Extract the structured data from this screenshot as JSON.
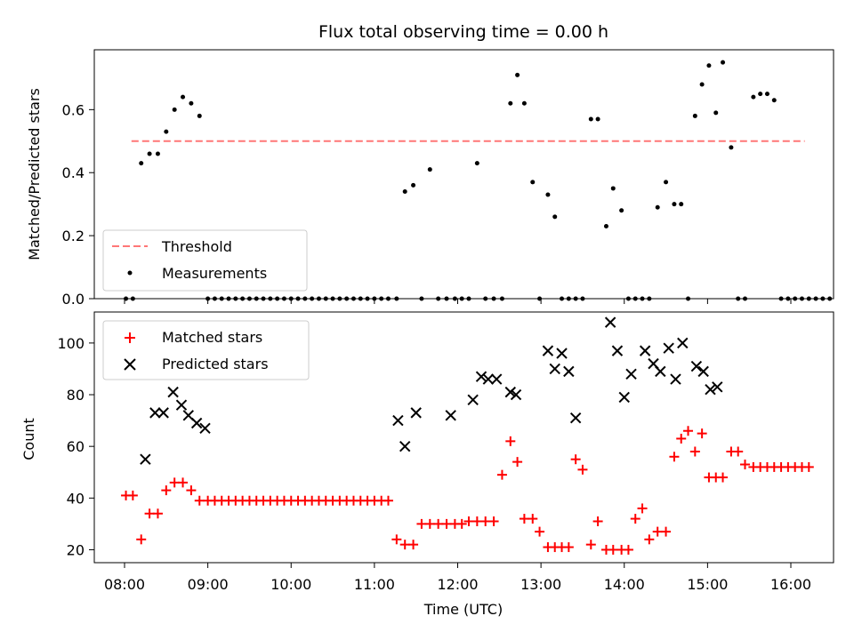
{
  "chart_data": [
    {
      "type": "scatter",
      "title": "Flux total observing time = 0.00 h",
      "xlabel": "",
      "ylabel": "Matched/Predicted stars",
      "ylim": [
        0,
        0.79
      ],
      "yticks": [
        0.0,
        0.2,
        0.4,
        0.6
      ],
      "ytick_labels": [
        "0.0",
        "0.2",
        "0.4",
        "0.6"
      ],
      "legend": {
        "placement": "lower-left",
        "entries": [
          "Threshold",
          "Measurements"
        ]
      },
      "threshold": {
        "name": "Threshold",
        "y": 0.5,
        "x_start": "08:05",
        "x_end": "16:10",
        "color": "#ff6666"
      },
      "series": [
        {
          "name": "Measurements",
          "marker": "dot",
          "color": "#000000",
          "points": [
            [
              "08:01",
              0
            ],
            [
              "08:06",
              0
            ],
            [
              "08:12",
              0.43
            ],
            [
              "08:18",
              0.46
            ],
            [
              "08:24",
              0.46
            ],
            [
              "08:30",
              0.53
            ],
            [
              "08:36",
              0.6
            ],
            [
              "08:42",
              0.64
            ],
            [
              "08:48",
              0.62
            ],
            [
              "08:54",
              0.58
            ],
            [
              "09:00",
              0
            ],
            [
              "09:05",
              0
            ],
            [
              "09:10",
              0
            ],
            [
              "09:15",
              0
            ],
            [
              "09:20",
              0
            ],
            [
              "09:25",
              0
            ],
            [
              "09:30",
              0
            ],
            [
              "09:35",
              0
            ],
            [
              "09:40",
              0
            ],
            [
              "09:45",
              0
            ],
            [
              "09:50",
              0
            ],
            [
              "09:55",
              0
            ],
            [
              "10:00",
              0
            ],
            [
              "10:05",
              0
            ],
            [
              "10:10",
              0
            ],
            [
              "10:15",
              0
            ],
            [
              "10:20",
              0
            ],
            [
              "10:25",
              0
            ],
            [
              "10:30",
              0
            ],
            [
              "10:35",
              0
            ],
            [
              "10:40",
              0
            ],
            [
              "10:45",
              0
            ],
            [
              "10:50",
              0
            ],
            [
              "10:55",
              0
            ],
            [
              "11:00",
              0
            ],
            [
              "11:05",
              0
            ],
            [
              "11:10",
              0
            ],
            [
              "11:16",
              0
            ],
            [
              "11:22",
              0.34
            ],
            [
              "11:28",
              0.36
            ],
            [
              "11:34",
              0
            ],
            [
              "11:40",
              0.41
            ],
            [
              "11:46",
              0
            ],
            [
              "11:52",
              0
            ],
            [
              "11:58",
              0
            ],
            [
              "12:03",
              0
            ],
            [
              "12:08",
              0
            ],
            [
              "12:14",
              0.43
            ],
            [
              "12:20",
              0
            ],
            [
              "12:26",
              0
            ],
            [
              "12:32",
              0
            ],
            [
              "12:38",
              0.62
            ],
            [
              "12:43",
              0.71
            ],
            [
              "12:48",
              0.62
            ],
            [
              "12:54",
              0.37
            ],
            [
              "12:59",
              0
            ],
            [
              "13:05",
              0.33
            ],
            [
              "13:10",
              0.26
            ],
            [
              "13:15",
              0
            ],
            [
              "13:20",
              0
            ],
            [
              "13:25",
              0
            ],
            [
              "13:30",
              0
            ],
            [
              "13:36",
              0.57
            ],
            [
              "13:41",
              0.57
            ],
            [
              "13:47",
              0.23
            ],
            [
              "13:52",
              0.35
            ],
            [
              "13:58",
              0.28
            ],
            [
              "14:03",
              0
            ],
            [
              "14:08",
              0
            ],
            [
              "14:13",
              0
            ],
            [
              "14:18",
              0
            ],
            [
              "14:24",
              0.29
            ],
            [
              "14:30",
              0.37
            ],
            [
              "14:36",
              0.3
            ],
            [
              "14:41",
              0.3
            ],
            [
              "14:46",
              0
            ],
            [
              "14:51",
              0.58
            ],
            [
              "14:56",
              0.68
            ],
            [
              "15:01",
              0.74
            ],
            [
              "15:06",
              0.59
            ],
            [
              "15:11",
              0.75
            ],
            [
              "15:17",
              0.48
            ],
            [
              "15:22",
              0
            ],
            [
              "15:27",
              0
            ],
            [
              "15:33",
              0.64
            ],
            [
              "15:38",
              0.65
            ],
            [
              "15:43",
              0.65
            ],
            [
              "15:48",
              0.63
            ],
            [
              "15:53",
              0
            ],
            [
              "15:58",
              0
            ],
            [
              "16:03",
              0
            ],
            [
              "16:08",
              0
            ],
            [
              "16:13",
              0
            ],
            [
              "16:18",
              0
            ],
            [
              "16:23",
              0
            ],
            [
              "16:28",
              0
            ]
          ]
        }
      ]
    },
    {
      "type": "scatter",
      "xlabel": "Time (UTC)",
      "ylabel": "Count",
      "ylim": [
        15,
        112
      ],
      "yticks": [
        20,
        40,
        60,
        80,
        100
      ],
      "ytick_labels": [
        "20",
        "40",
        "60",
        "80",
        "100"
      ],
      "xticks": [
        "08:00",
        "09:00",
        "10:00",
        "11:00",
        "12:00",
        "13:00",
        "14:00",
        "15:00",
        "16:00"
      ],
      "legend": {
        "placement": "upper-left",
        "entries": [
          "Matched stars",
          "Predicted stars"
        ]
      },
      "series": [
        {
          "name": "Matched stars",
          "marker": "plus",
          "color": "#ff0000",
          "points": [
            [
              "08:01",
              41
            ],
            [
              "08:06",
              41
            ],
            [
              "08:12",
              24
            ],
            [
              "08:18",
              34
            ],
            [
              "08:24",
              34
            ],
            [
              "08:30",
              43
            ],
            [
              "08:36",
              46
            ],
            [
              "08:42",
              46
            ],
            [
              "08:48",
              43
            ],
            [
              "08:54",
              39
            ],
            [
              "09:00",
              39
            ],
            [
              "09:05",
              39
            ],
            [
              "09:10",
              39
            ],
            [
              "09:15",
              39
            ],
            [
              "09:20",
              39
            ],
            [
              "09:25",
              39
            ],
            [
              "09:30",
              39
            ],
            [
              "09:35",
              39
            ],
            [
              "09:40",
              39
            ],
            [
              "09:45",
              39
            ],
            [
              "09:50",
              39
            ],
            [
              "09:55",
              39
            ],
            [
              "10:00",
              39
            ],
            [
              "10:05",
              39
            ],
            [
              "10:10",
              39
            ],
            [
              "10:15",
              39
            ],
            [
              "10:20",
              39
            ],
            [
              "10:25",
              39
            ],
            [
              "10:30",
              39
            ],
            [
              "10:35",
              39
            ],
            [
              "10:40",
              39
            ],
            [
              "10:45",
              39
            ],
            [
              "10:50",
              39
            ],
            [
              "10:55",
              39
            ],
            [
              "11:00",
              39
            ],
            [
              "11:05",
              39
            ],
            [
              "11:10",
              39
            ],
            [
              "11:16",
              24
            ],
            [
              "11:22",
              22
            ],
            [
              "11:28",
              22
            ],
            [
              "11:34",
              30
            ],
            [
              "11:40",
              30
            ],
            [
              "11:46",
              30
            ],
            [
              "11:52",
              30
            ],
            [
              "11:58",
              30
            ],
            [
              "12:03",
              30
            ],
            [
              "12:08",
              31
            ],
            [
              "12:14",
              31
            ],
            [
              "12:20",
              31
            ],
            [
              "12:26",
              31
            ],
            [
              "12:32",
              49
            ],
            [
              "12:38",
              62
            ],
            [
              "12:43",
              54
            ],
            [
              "12:48",
              32
            ],
            [
              "12:54",
              32
            ],
            [
              "12:59",
              27
            ],
            [
              "13:05",
              21
            ],
            [
              "13:10",
              21
            ],
            [
              "13:15",
              21
            ],
            [
              "13:20",
              21
            ],
            [
              "13:25",
              55
            ],
            [
              "13:30",
              51
            ],
            [
              "13:36",
              22
            ],
            [
              "13:41",
              31
            ],
            [
              "13:47",
              20
            ],
            [
              "13:52",
              20
            ],
            [
              "13:58",
              20
            ],
            [
              "14:03",
              20
            ],
            [
              "14:08",
              32
            ],
            [
              "14:13",
              36
            ],
            [
              "14:18",
              24
            ],
            [
              "14:24",
              27
            ],
            [
              "14:30",
              27
            ],
            [
              "14:36",
              56
            ],
            [
              "14:41",
              63
            ],
            [
              "14:46",
              66
            ],
            [
              "14:51",
              58
            ],
            [
              "14:56",
              65
            ],
            [
              "15:01",
              48
            ],
            [
              "15:06",
              48
            ],
            [
              "15:11",
              48
            ],
            [
              "15:17",
              58
            ],
            [
              "15:22",
              58
            ],
            [
              "15:27",
              53
            ],
            [
              "15:33",
              52
            ],
            [
              "15:38",
              52
            ],
            [
              "15:43",
              52
            ],
            [
              "15:48",
              52
            ],
            [
              "15:53",
              52
            ],
            [
              "15:58",
              52
            ],
            [
              "16:03",
              52
            ],
            [
              "16:08",
              52
            ],
            [
              "16:13",
              52
            ]
          ]
        },
        {
          "name": "Predicted stars",
          "marker": "x",
          "color": "#000000",
          "points": [
            [
              "08:15",
              55
            ],
            [
              "08:22",
              73
            ],
            [
              "08:28",
              73
            ],
            [
              "08:35",
              81
            ],
            [
              "08:41",
              76
            ],
            [
              "08:46",
              72
            ],
            [
              "08:52",
              69
            ],
            [
              "08:58",
              67
            ],
            [
              "11:17",
              70
            ],
            [
              "11:22",
              60
            ],
            [
              "11:30",
              73
            ],
            [
              "11:55",
              72
            ],
            [
              "12:11",
              78
            ],
            [
              "12:17",
              87
            ],
            [
              "12:22",
              86
            ],
            [
              "12:28",
              86
            ],
            [
              "12:38",
              81
            ],
            [
              "12:42",
              80
            ],
            [
              "13:05",
              97
            ],
            [
              "13:10",
              90
            ],
            [
              "13:15",
              96
            ],
            [
              "13:20",
              89
            ],
            [
              "13:25",
              71
            ],
            [
              "13:50",
              108
            ],
            [
              "13:55",
              97
            ],
            [
              "14:00",
              79
            ],
            [
              "14:05",
              88
            ],
            [
              "14:15",
              97
            ],
            [
              "14:21",
              92
            ],
            [
              "14:26",
              89
            ],
            [
              "14:32",
              98
            ],
            [
              "14:37",
              86
            ],
            [
              "14:42",
              100
            ],
            [
              "14:52",
              91
            ],
            [
              "14:57",
              89
            ],
            [
              "15:02",
              82
            ],
            [
              "15:07",
              83
            ]
          ]
        }
      ]
    }
  ]
}
